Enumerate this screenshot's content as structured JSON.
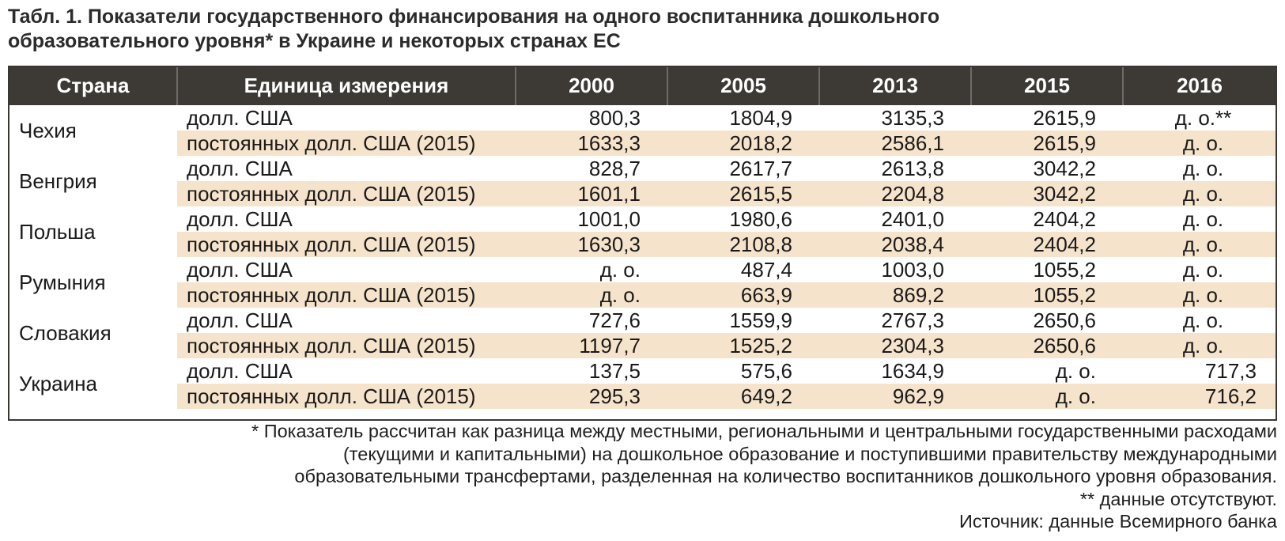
{
  "title_line1": "Табл. 1. Показатели государственного финансирования на одного воспитанника дошкольного",
  "title_line2": "образовательного уровня* в Украине и некоторых странах ЕС",
  "headers": [
    "Страна",
    "Единица измерения",
    "2000",
    "2005",
    "2013",
    "2015",
    "2016"
  ],
  "colors": {
    "header_bg": "#3d3a36",
    "band_bg": "#f6e3cb"
  },
  "rows": [
    {
      "country": "Чехия",
      "lines": [
        {
          "unit": "долл. США",
          "values": [
            "800,3",
            "1804,9",
            "3135,3",
            "2615,9",
            "д. о.**"
          ]
        },
        {
          "unit": "постоянных долл. США (2015)",
          "values": [
            "1633,3",
            "2018,2",
            "2586,1",
            "2615,9",
            "д. о."
          ]
        }
      ]
    },
    {
      "country": "Венгрия",
      "lines": [
        {
          "unit": "долл. США",
          "values": [
            "828,7",
            "2617,7",
            "2613,8",
            "3042,2",
            "д. о."
          ]
        },
        {
          "unit": "постоянных долл. США (2015)",
          "values": [
            "1601,1",
            "2615,5",
            "2204,8",
            "3042,2",
            "д. о."
          ]
        }
      ]
    },
    {
      "country": "Польша",
      "lines": [
        {
          "unit": "долл. США",
          "values": [
            "1001,0",
            "1980,6",
            "2401,0",
            "2404,2",
            "д. о."
          ]
        },
        {
          "unit": "постоянных долл. США (2015)",
          "values": [
            "1630,3",
            "2108,8",
            "2038,4",
            "2404,2",
            "д. о."
          ]
        }
      ]
    },
    {
      "country": "Румыния",
      "lines": [
        {
          "unit": "долл. США",
          "values": [
            "д. о.",
            "487,4",
            "1003,0",
            "1055,2",
            "д. о."
          ]
        },
        {
          "unit": "постоянных долл. США (2015)",
          "values": [
            "д. о.",
            "663,9",
            "869,2",
            "1055,2",
            "д. о."
          ]
        }
      ]
    },
    {
      "country": "Словакия",
      "lines": [
        {
          "unit": "долл. США",
          "values": [
            "727,6",
            "1559,9",
            "2767,3",
            "2650,6",
            "д. о."
          ]
        },
        {
          "unit": "постоянных долл. США (2015)",
          "values": [
            "1197,7",
            "1525,2",
            "2304,3",
            "2650,6",
            "д. о."
          ]
        }
      ]
    },
    {
      "country": "Украина",
      "lines": [
        {
          "unit": "долл. США",
          "values": [
            "137,5",
            "575,6",
            "1634,9",
            "д. о.",
            "717,3"
          ]
        },
        {
          "unit": "постоянных долл. США (2015)",
          "values": [
            "295,3",
            "649,2",
            "962,9",
            "д. о.",
            "716,2"
          ]
        }
      ]
    }
  ],
  "notes": [
    "* Показатель рассчитан как разница между местными, региональными и центральными государственными расходами",
    "(текущими и капитальными) на дошкольное образование и поступившими правительству международными",
    "образовательными трансфертами, разделенная на количество воспитанников дошкольного уровня образования.",
    "** данные отсутствуют.",
    "Источник: данные Всемирного банка"
  ]
}
